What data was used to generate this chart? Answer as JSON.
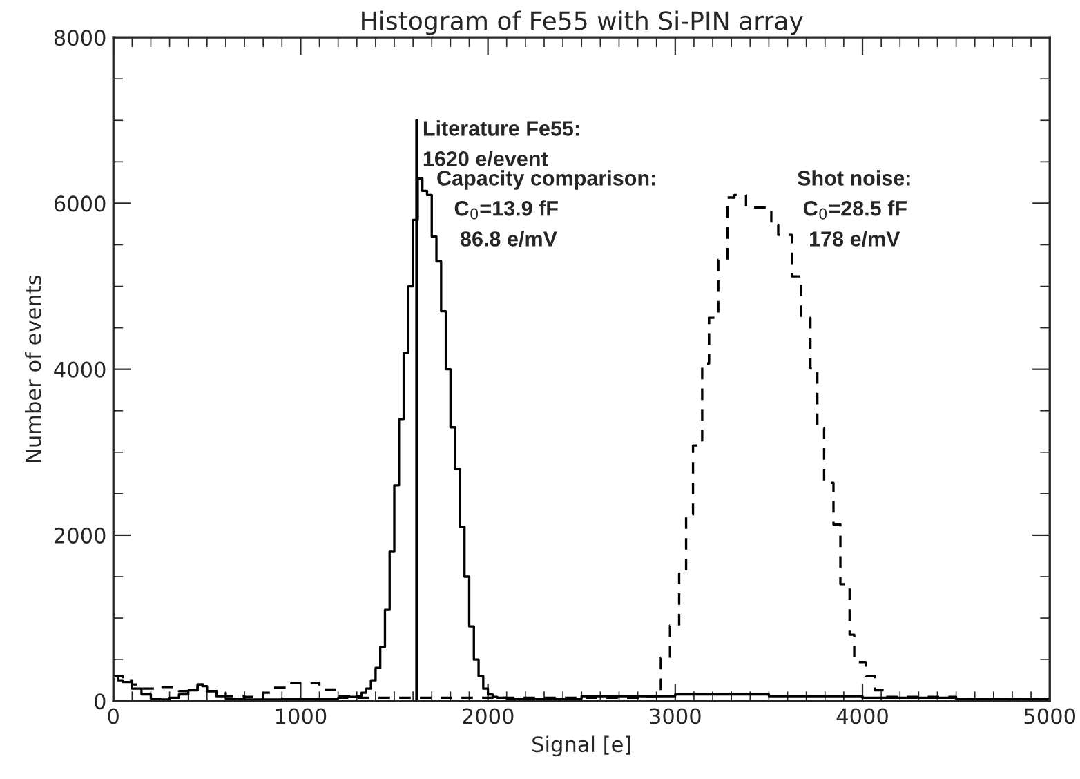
{
  "chart_data": {
    "type": "step",
    "title": "Histogram of Fe55 with Si-PIN array",
    "xlabel": "Signal [e]",
    "ylabel": "Number of events",
    "xlim": [
      0,
      5000
    ],
    "xticks": [
      0,
      1000,
      2000,
      3000,
      4000,
      5000
    ],
    "ylim": [
      0,
      8000
    ],
    "yticks": [
      0,
      2000,
      4000,
      6000,
      8000
    ],
    "grid": false,
    "legend": false,
    "series": [
      {
        "color": "#000000",
        "line_style": "solid",
        "x": [
          0,
          25,
          50,
          100,
          150,
          200,
          250,
          300,
          350,
          400,
          450,
          475,
          500,
          550,
          600,
          700,
          800,
          900,
          1000,
          1100,
          1200,
          1250,
          1300,
          1325,
          1350,
          1375,
          1400,
          1425,
          1450,
          1475,
          1500,
          1525,
          1550,
          1575,
          1600,
          1625,
          1650,
          1675,
          1700,
          1725,
          1750,
          1775,
          1800,
          1825,
          1850,
          1875,
          1900,
          1925,
          1950,
          1975,
          2000,
          2025,
          2050,
          2100,
          2500,
          3000,
          3500,
          4000,
          4500,
          5000
        ],
        "values": [
          300,
          250,
          230,
          150,
          80,
          30,
          20,
          40,
          80,
          130,
          200,
          180,
          120,
          60,
          30,
          20,
          20,
          30,
          30,
          30,
          40,
          50,
          60,
          100,
          150,
          250,
          400,
          650,
          1100,
          1800,
          2600,
          3400,
          4200,
          5000,
          5800,
          6300,
          6150,
          6100,
          5600,
          5300,
          4700,
          4000,
          3300,
          2800,
          2100,
          1500,
          900,
          500,
          300,
          150,
          80,
          50,
          40,
          30,
          60,
          80,
          60,
          40,
          30,
          30
        ]
      },
      {
        "color": "#000000",
        "line_style": "dashed",
        "x": [
          0,
          50,
          100,
          150,
          250,
          350,
          400,
          450,
          500,
          600,
          700,
          800,
          850,
          950,
          1100,
          1200,
          1300,
          2000,
          2800,
          2923,
          2972,
          3021,
          3058,
          3095,
          3144,
          3181,
          3230,
          3279,
          3316,
          3378,
          3513,
          3550,
          3623,
          3673,
          3722,
          3759,
          3795,
          3845,
          3882,
          3931,
          3956,
          4017,
          4066,
          4120,
          4500,
          5000
        ],
        "values": [
          300,
          250,
          200,
          150,
          170,
          120,
          150,
          200,
          120,
          60,
          50,
          100,
          160,
          220,
          140,
          60,
          40,
          40,
          60,
          520,
          910,
          1550,
          2250,
          3080,
          4070,
          4620,
          5320,
          6070,
          6100,
          5950,
          5740,
          5620,
          5120,
          4620,
          4010,
          3290,
          2630,
          2130,
          1410,
          800,
          470,
          300,
          130,
          50,
          30,
          30
        ]
      },
      {
        "type": "line",
        "color": "#000000",
        "line_style": "solid",
        "x": [
          1620,
          1620
        ],
        "values": [
          0,
          7000
        ]
      }
    ],
    "annotations": [
      {
        "text": "Literature Fe55:\n1620 e/event",
        "x": 1620,
        "y": 7000
      },
      "Capacity comparison:\n   C$_{0}$=13.9 fF\n    86.8 e/mV",
      "Shot noise:\n C$_{0}$=28.5 fF\n  178 e/mV"
    ]
  }
}
